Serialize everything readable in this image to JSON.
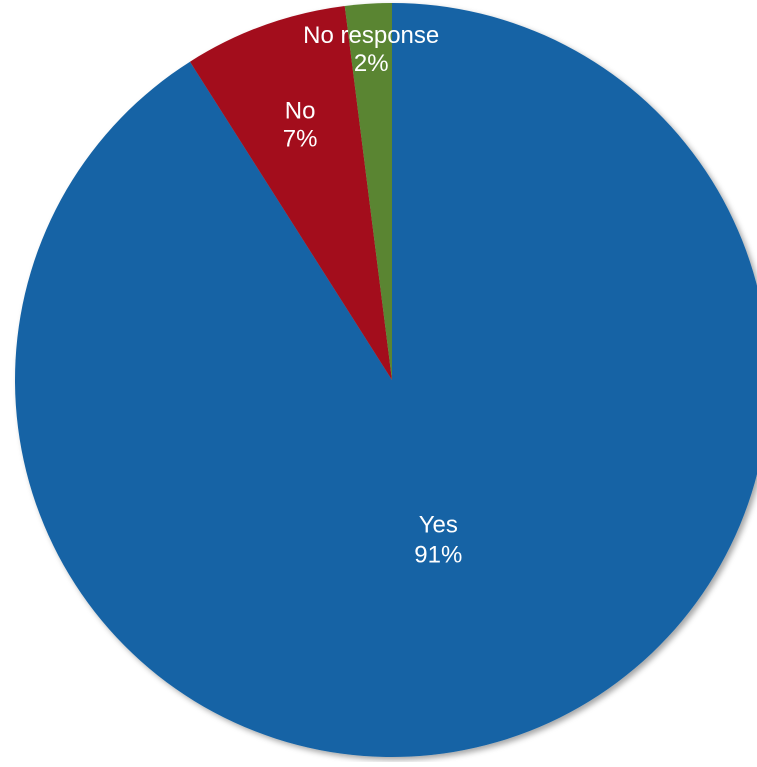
{
  "chart_data": {
    "type": "pie",
    "start_angle_deg": 0,
    "direction": "clockwise",
    "slices": [
      {
        "label": "Yes",
        "value": 91,
        "display": "91%",
        "color": "#1764A5"
      },
      {
        "label": "No",
        "value": 7,
        "display": "7%",
        "color": "#A30A1C"
      },
      {
        "label": "No response",
        "value": 2,
        "display": "2%",
        "color": "#5A8531"
      }
    ]
  }
}
